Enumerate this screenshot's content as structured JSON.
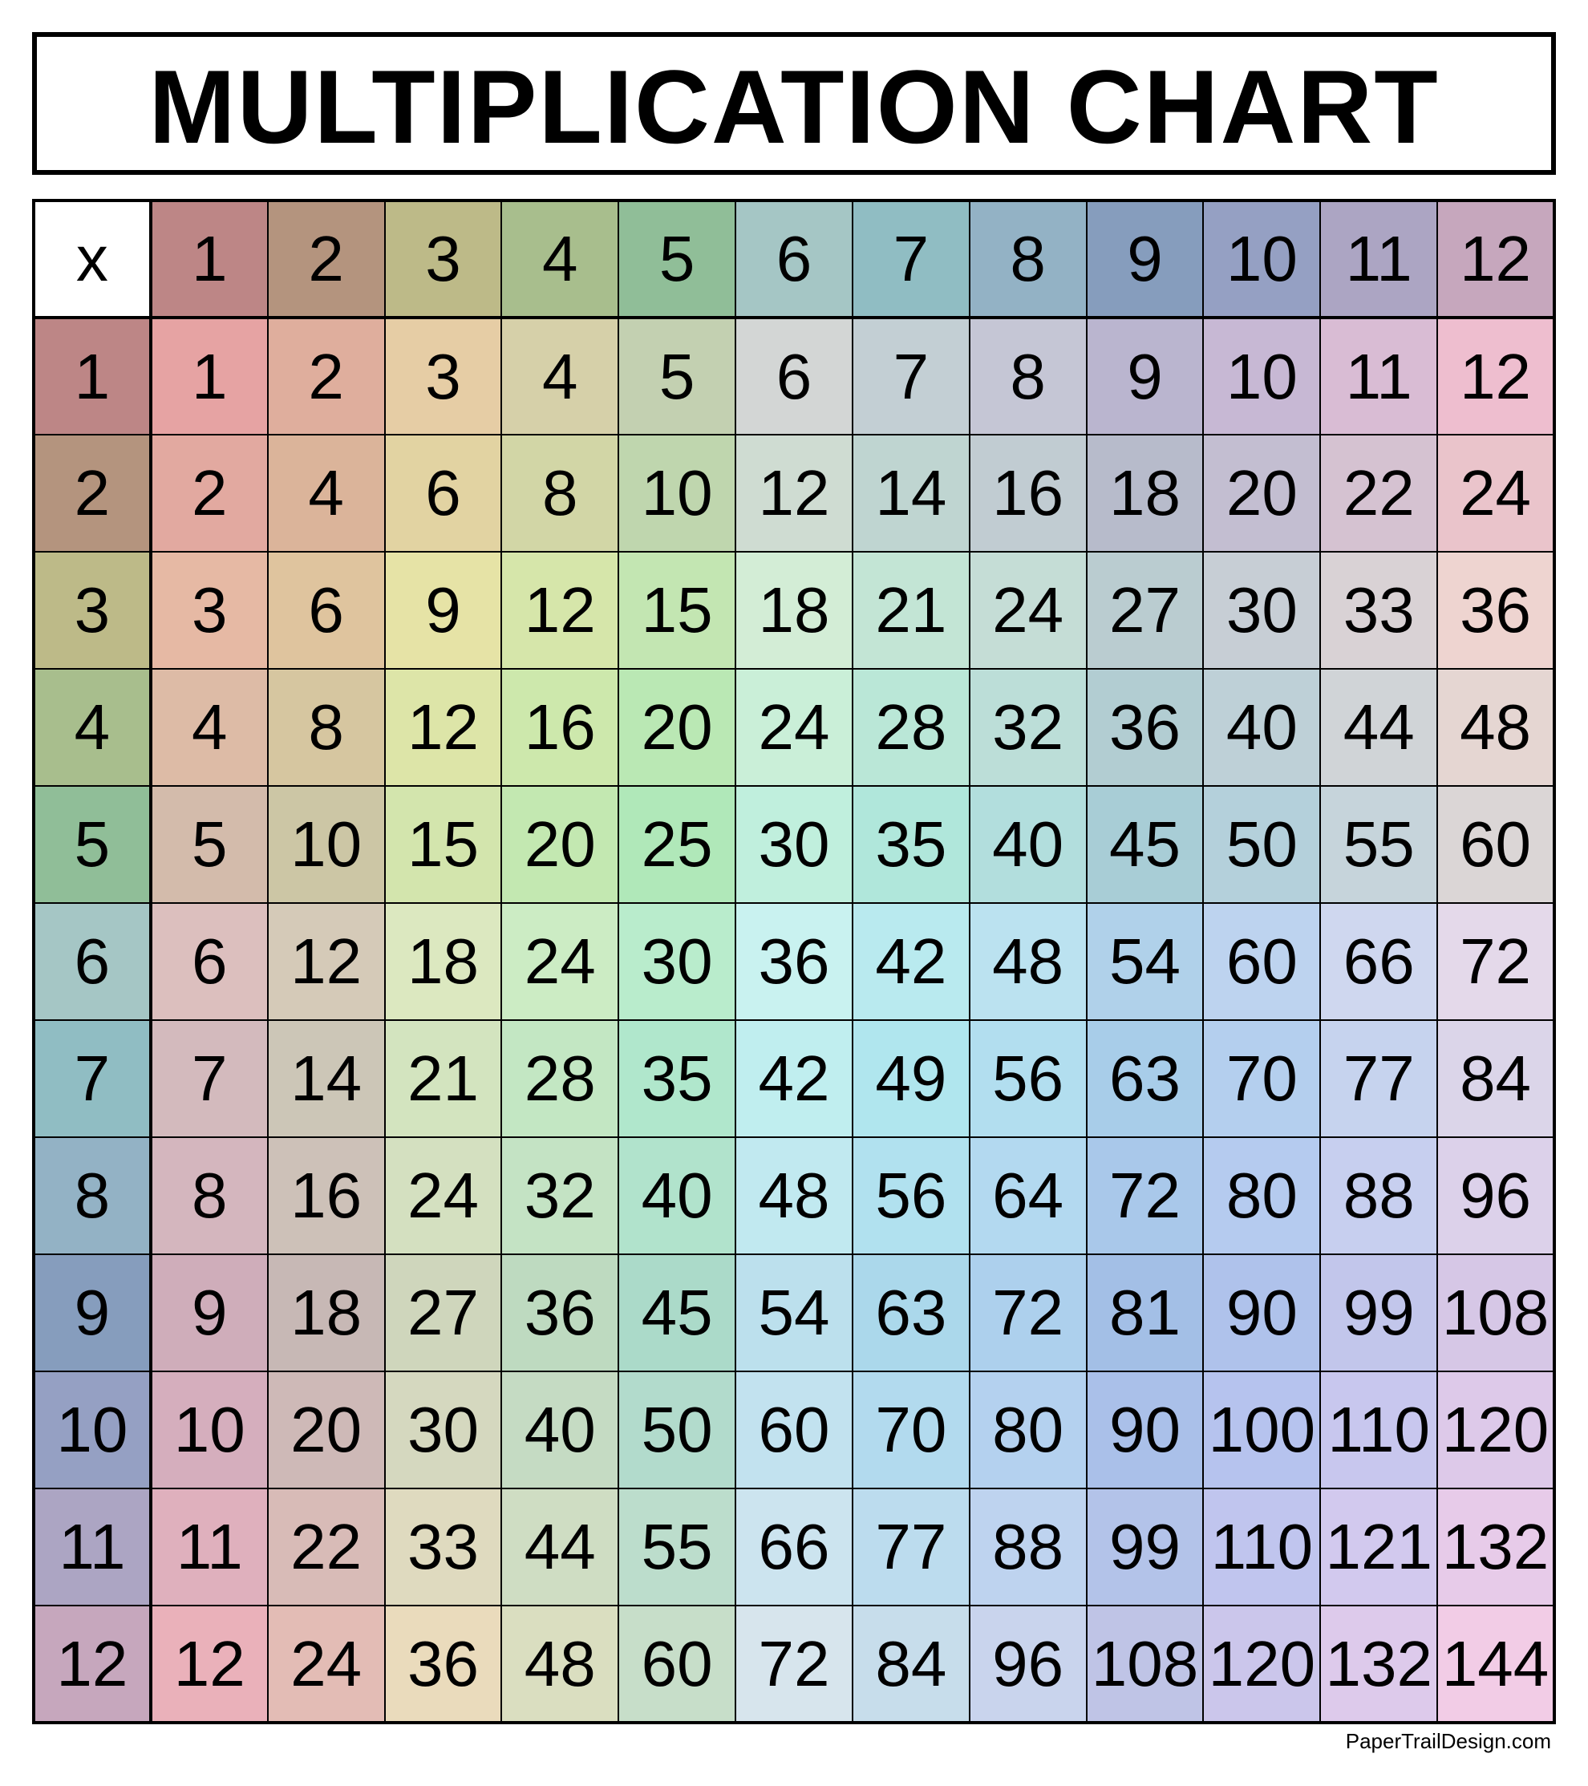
{
  "title": "MULTIPLICATION CHART",
  "title_fontsize": 130,
  "corner_label": "x",
  "size": 12,
  "cell_fontsize": 80,
  "cell_fontweight": 400,
  "text_color": "#000000",
  "border_color": "#000000",
  "credit": "PaperTrailDesign.com",
  "credit_fontsize": 26,
  "column_colors": [
    "#e6a3a3",
    "#dbb49a",
    "#e6e3a6",
    "#cde8ac",
    "#b0e8b9",
    "#c9f2f0",
    "#b0e6ee",
    "#b3d9f0",
    "#a3bfe6",
    "#b6c3ee",
    "#d2c9ee",
    "#f2cce6"
  ],
  "header_darken": 0.82,
  "col_headers": [
    "1",
    "2",
    "3",
    "4",
    "5",
    "6",
    "7",
    "8",
    "9",
    "10",
    "11",
    "12"
  ],
  "row_headers": [
    "1",
    "2",
    "3",
    "4",
    "5",
    "6",
    "7",
    "8",
    "9",
    "10",
    "11",
    "12"
  ],
  "rows": [
    [
      "1",
      "2",
      "3",
      "4",
      "5",
      "6",
      "7",
      "8",
      "9",
      "10",
      "11",
      "12"
    ],
    [
      "2",
      "4",
      "6",
      "8",
      "10",
      "12",
      "14",
      "16",
      "18",
      "20",
      "22",
      "24"
    ],
    [
      "3",
      "6",
      "9",
      "12",
      "15",
      "18",
      "21",
      "24",
      "27",
      "30",
      "33",
      "36"
    ],
    [
      "4",
      "8",
      "12",
      "16",
      "20",
      "24",
      "28",
      "32",
      "36",
      "40",
      "44",
      "48"
    ],
    [
      "5",
      "10",
      "15",
      "20",
      "25",
      "30",
      "35",
      "40",
      "45",
      "50",
      "55",
      "60"
    ],
    [
      "6",
      "12",
      "18",
      "24",
      "30",
      "36",
      "42",
      "48",
      "54",
      "60",
      "66",
      "72"
    ],
    [
      "7",
      "14",
      "21",
      "28",
      "35",
      "42",
      "49",
      "56",
      "63",
      "70",
      "77",
      "84"
    ],
    [
      "8",
      "16",
      "24",
      "32",
      "40",
      "48",
      "56",
      "64",
      "72",
      "80",
      "88",
      "96"
    ],
    [
      "9",
      "18",
      "27",
      "36",
      "45",
      "54",
      "63",
      "72",
      "81",
      "90",
      "99",
      "108"
    ],
    [
      "10",
      "20",
      "30",
      "40",
      "50",
      "60",
      "70",
      "80",
      "90",
      "100",
      "110",
      "120"
    ],
    [
      "11",
      "22",
      "33",
      "44",
      "55",
      "66",
      "77",
      "88",
      "99",
      "110",
      "121",
      "132"
    ],
    [
      "12",
      "24",
      "36",
      "48",
      "60",
      "72",
      "84",
      "96",
      "108",
      "120",
      "132",
      "144"
    ]
  ]
}
